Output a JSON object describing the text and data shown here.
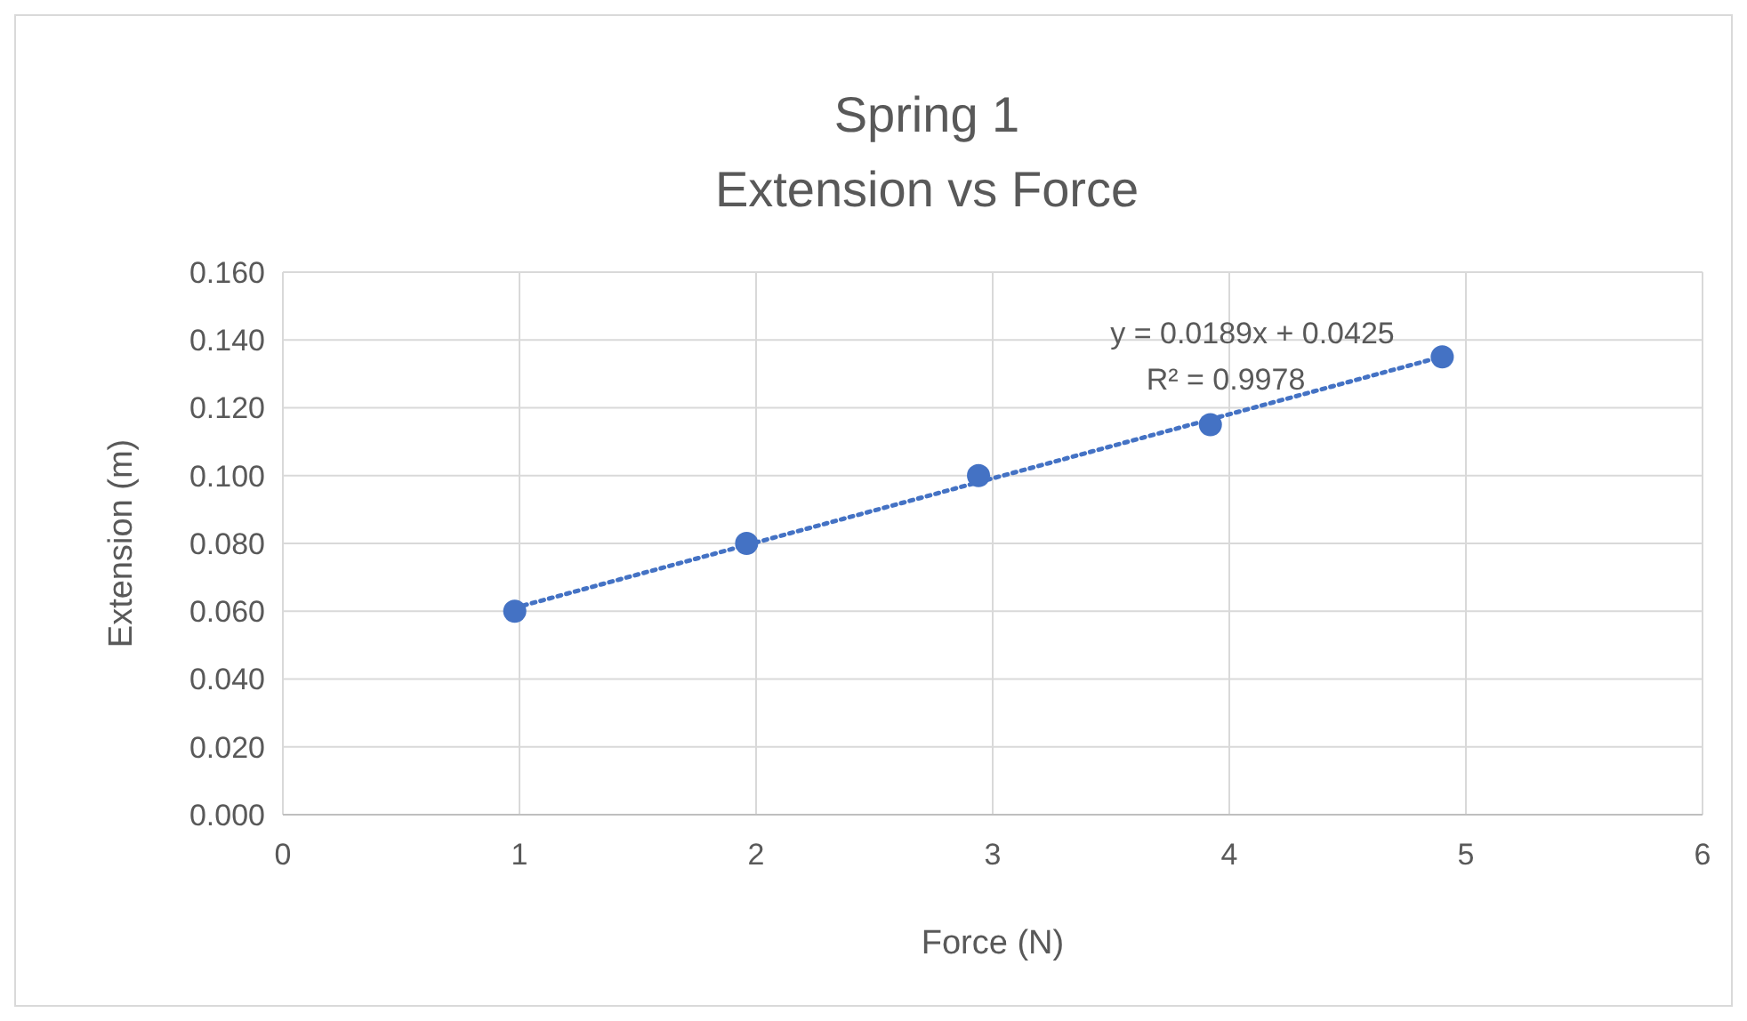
{
  "chart_data": {
    "type": "scatter",
    "title": "Spring 1",
    "subtitle": "Extension vs Force",
    "xlabel": "Force (N)",
    "ylabel": "Extension (m)",
    "annotations": [
      "y = 0.0189x + 0.0425",
      "R² = 0.9978"
    ],
    "xlim": [
      0,
      6
    ],
    "xticks": [
      0,
      1,
      2,
      3,
      4,
      5,
      6
    ],
    "ylim": [
      0,
      0.16
    ],
    "yticks": [
      {
        "value": 0,
        "label": "0.000"
      },
      {
        "value": 0.02,
        "label": "0.020"
      },
      {
        "value": 0.04,
        "label": "0.040"
      },
      {
        "value": 0.06,
        "label": "0.060"
      },
      {
        "value": 0.08,
        "label": "0.080"
      },
      {
        "value": 0.1,
        "label": "0.100"
      },
      {
        "value": 0.12,
        "label": "0.120"
      },
      {
        "value": 0.14,
        "label": "0.140"
      },
      {
        "value": 0.16,
        "label": "0.160"
      }
    ],
    "grid": true,
    "series": [
      {
        "type": "line",
        "color": "#4472c4",
        "x": [
          0.98,
          4.9
        ],
        "values": [
          0.061,
          0.1351
        ],
        "line_style": "dotted",
        "marker": "none"
      },
      {
        "color": "#4472c4",
        "x": [
          0.98,
          1.96,
          2.94,
          3.92,
          4.9
        ],
        "values": [
          0.06,
          0.08,
          0.1,
          0.115,
          0.135
        ],
        "marker": "circle"
      }
    ]
  }
}
